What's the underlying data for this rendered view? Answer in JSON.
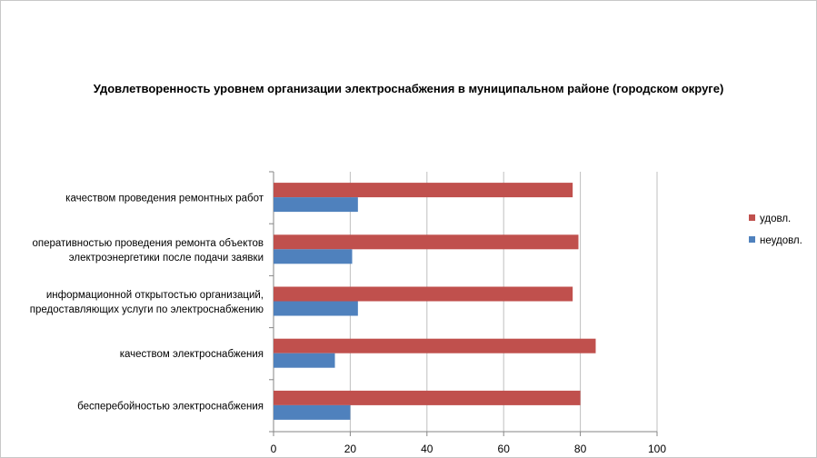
{
  "chart_data": {
    "type": "bar",
    "orientation": "horizontal",
    "title": "Удовлетворенность уровнем организации электроснабжения в муниципальном районе (городском округе)",
    "categories": [
      [
        "качеством проведения ремонтных работ"
      ],
      [
        "оперативностью проведения ремонта объектов",
        "электроэнергетики после подачи заявки"
      ],
      [
        "информационной открытостью организаций,",
        "предоставляющих услуги по электроснабжению"
      ],
      [
        "качеством электроснабжения"
      ],
      [
        "бесперебойностью электроснабжения"
      ]
    ],
    "series": [
      {
        "name": "удовл.",
        "color": "#c0504d",
        "values": [
          78,
          79.5,
          78,
          84,
          80
        ]
      },
      {
        "name": "неудовл.",
        "color": "#4f81bd",
        "values": [
          22,
          20.5,
          22,
          16,
          20
        ]
      }
    ],
    "xlim": [
      0,
      100
    ],
    "xticks": [
      0,
      20,
      40,
      60,
      80,
      100
    ],
    "grid": "vertical",
    "legend": "right"
  }
}
